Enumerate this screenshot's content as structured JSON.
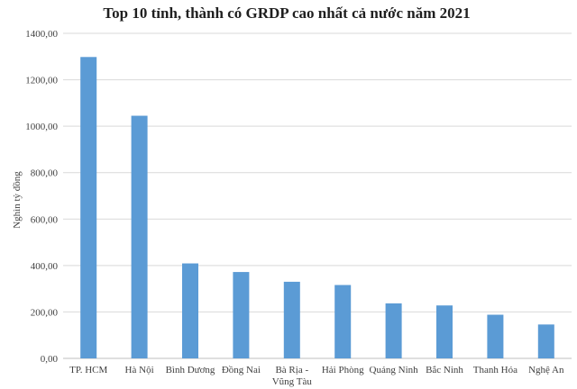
{
  "chart_data": {
    "type": "bar",
    "title": "Top 10 tỉnh, thành có GRDP cao nhất cả nước năm 2021",
    "ylabel": "Nghìn tỷ đồng",
    "xlabel": "",
    "ylim": [
      0,
      1400
    ],
    "yticks": [
      "0,00",
      "200,00",
      "400,00",
      "600,00",
      "800,00",
      "1000,00",
      "1200,00",
      "1400,00"
    ],
    "grid": true,
    "categories": [
      [
        "TP. HCM"
      ],
      [
        "Hà Nội"
      ],
      [
        "Bình Dương"
      ],
      [
        "Đồng Nai"
      ],
      [
        "Bà Rịa -",
        "Vũng Tàu"
      ],
      [
        "Hải Phòng"
      ],
      [
        "Quảng Ninh"
      ],
      [
        "Bắc Ninh"
      ],
      [
        "Thanh Hóa"
      ],
      [
        "Nghệ An"
      ]
    ],
    "values": [
      1298,
      1045,
      409,
      372,
      330,
      316,
      237,
      228,
      188,
      146
    ],
    "color": "#5b9bd5"
  }
}
